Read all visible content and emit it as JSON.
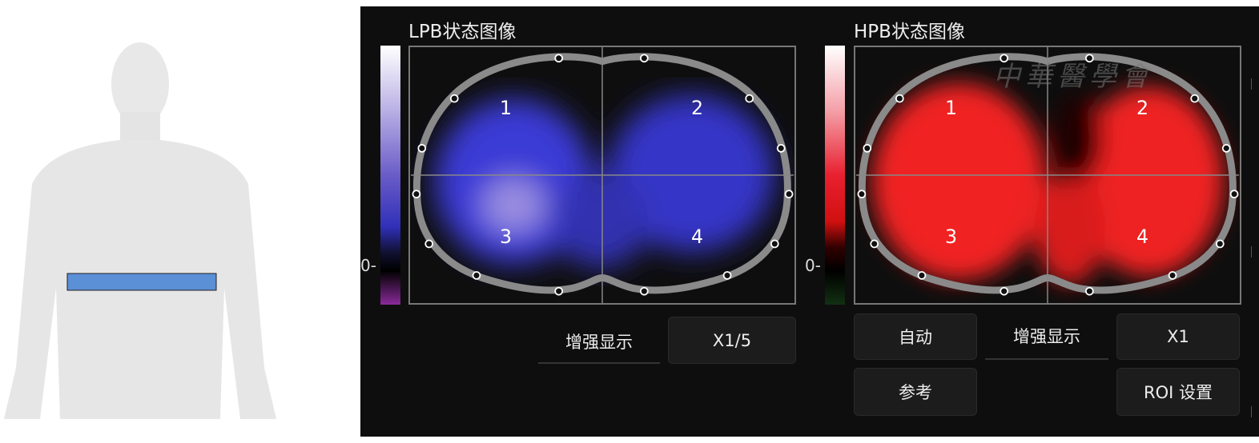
{
  "body_figure": {
    "band_color": "#5b8fd6"
  },
  "lpb": {
    "title": "LPB状态图像",
    "zero_label": "0-",
    "regions": [
      "1",
      "2",
      "3",
      "4"
    ],
    "enhance_label": "增强显示",
    "scale_button": "X1/5",
    "color": "#3a3ad0"
  },
  "hpb": {
    "title": "HPB状态图像",
    "zero_label": "0-",
    "regions": [
      "1",
      "2",
      "3",
      "4"
    ],
    "auto_button": "自动",
    "enhance_label": "增强显示",
    "scale_button": "X1",
    "reference_button": "参考",
    "roi_button": "ROI 设置",
    "color": "#ee2020"
  },
  "watermark": "中華醫學會"
}
